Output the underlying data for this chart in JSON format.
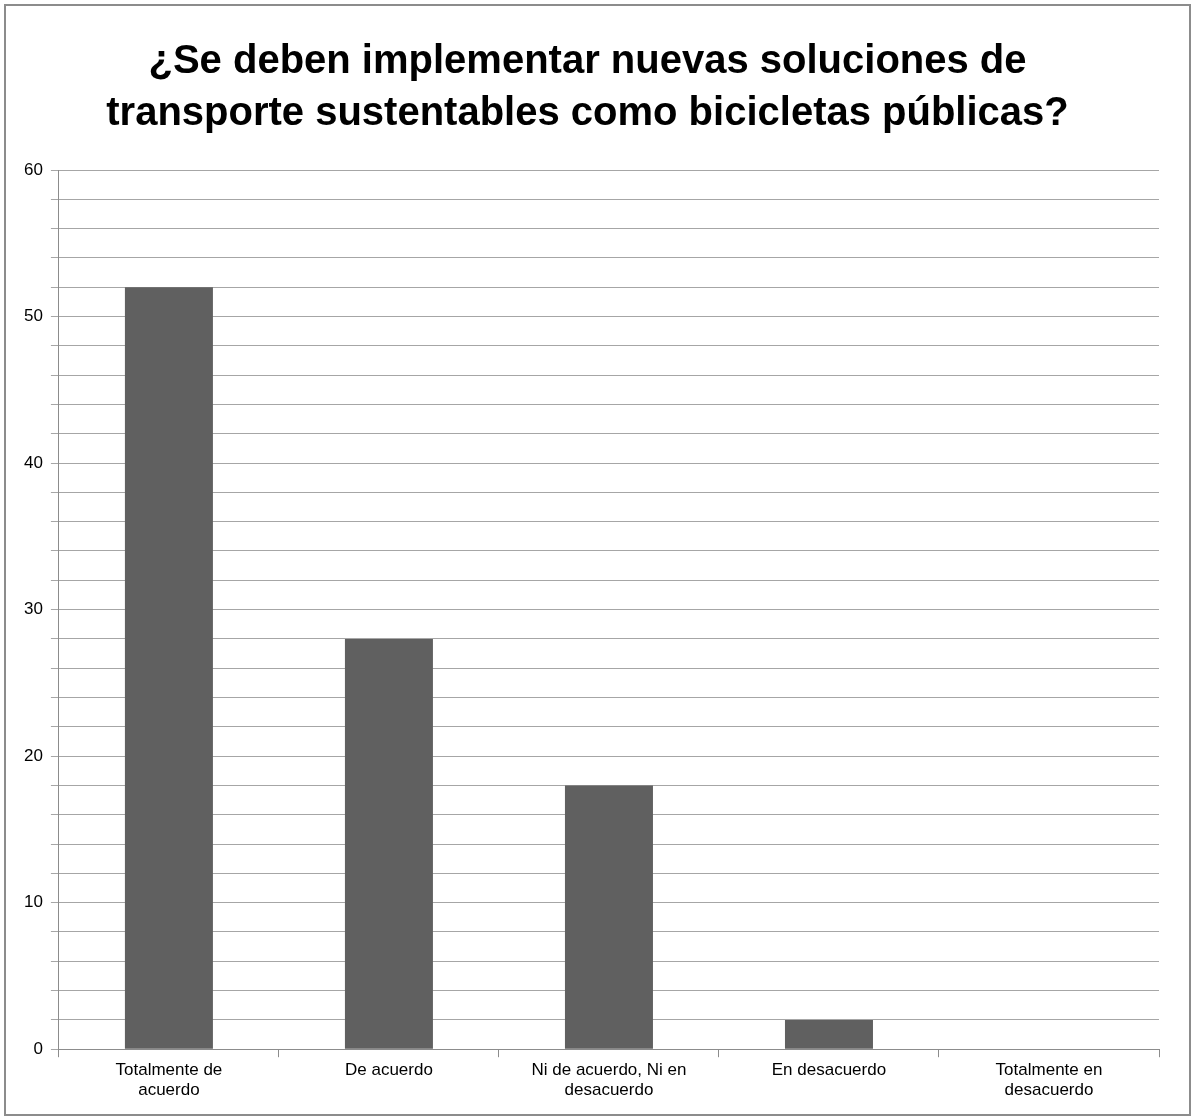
{
  "chart_data": {
    "type": "bar",
    "title": "¿Se deben implementar nuevas soluciones de transporte sustentables como bicicletas públicas?",
    "categories": [
      "Totalmente de acuerdo",
      "De acuerdo",
      "Ni de acuerdo, Ni en desacuerdo",
      "En desacuerdo",
      "Totalmente en desacuerdo"
    ],
    "values": [
      52,
      28,
      18,
      2,
      0
    ],
    "color": "#606060",
    "ylim": [
      0,
      60
    ],
    "yticks": [
      0,
      {
        "value": 2,
        "label": null
      },
      {
        "value": 4,
        "label": null
      },
      {
        "value": 6,
        "label": null
      },
      {
        "value": 8,
        "label": null
      },
      10,
      {
        "value": 12,
        "label": null
      },
      {
        "value": 14,
        "label": null
      },
      {
        "value": 16,
        "label": null
      },
      {
        "value": 18,
        "label": null
      },
      20,
      {
        "value": 22,
        "label": null
      },
      {
        "value": 24,
        "label": null
      },
      {
        "value": 26,
        "label": null
      },
      {
        "value": 28,
        "label": null
      },
      30,
      {
        "value": 32,
        "label": null
      },
      {
        "value": 34,
        "label": null
      },
      {
        "value": 36,
        "label": null
      },
      {
        "value": 38,
        "label": null
      },
      40,
      {
        "value": 42,
        "label": null
      },
      {
        "value": 44,
        "label": null
      },
      {
        "value": 46,
        "label": null
      },
      {
        "value": 48,
        "label": null
      },
      50,
      {
        "value": 52,
        "label": null
      },
      {
        "value": 54,
        "label": null
      },
      {
        "value": 56,
        "label": null
      },
      {
        "value": 58,
        "label": null
      },
      60
    ],
    "grid": "y",
    "legend": false
  }
}
